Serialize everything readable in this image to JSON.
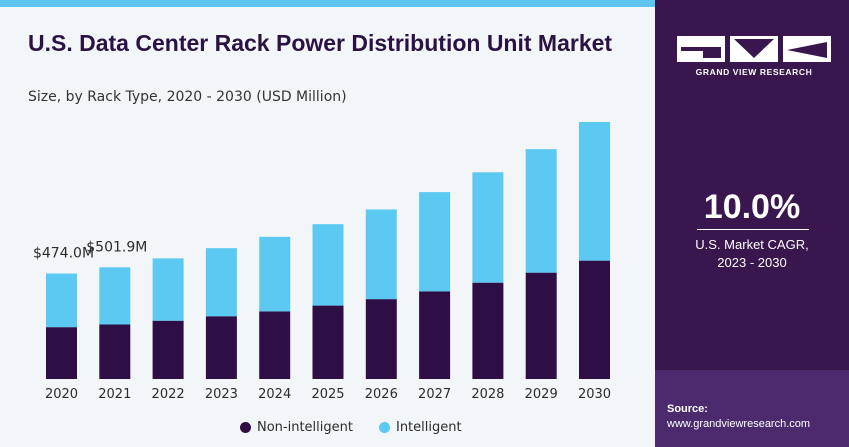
{
  "title": "U.S. Data Center Rack Power Distribution Unit Market",
  "subtitle": "Size, by Rack Type, 2020 - 2030 (USD Million)",
  "annotations": {
    "a2020": "$474.0M",
    "a2021": "$501.9M"
  },
  "legend": {
    "non_intelligent": "Non-intelligent",
    "intelligent": "Intelligent"
  },
  "sidebar": {
    "logo_text": "GRAND VIEW RESEARCH",
    "cagr_value": "10.0%",
    "cagr_label_line1": "U.S. Market CAGR,",
    "cagr_label_line2": "2023 - 2030",
    "source_title": "Source:",
    "source_url": "www.grandviewresearch.com"
  },
  "colors": {
    "non_intelligent": "#2d0f45",
    "intelligent": "#5cc9f2",
    "sidebar": "#3a164e",
    "accent": "#5ec6ee"
  },
  "chart_data": {
    "type": "bar",
    "stacked": true,
    "categories": [
      "2020",
      "2021",
      "2022",
      "2023",
      "2024",
      "2025",
      "2026",
      "2027",
      "2028",
      "2029",
      "2030"
    ],
    "series": [
      {
        "name": "Non-intelligent",
        "values": [
          233,
          245,
          262,
          282,
          304,
          330,
          359,
          394,
          433,
          478,
          532
        ]
      },
      {
        "name": "Intelligent",
        "values": [
          241,
          257,
          280,
          306,
          335,
          366,
          403,
          446,
          496,
          555,
          623
        ]
      }
    ],
    "totals": [
      474.0,
      501.9,
      542,
      588,
      639,
      696,
      762,
      840,
      929,
      1033,
      1155
    ],
    "ylim": [
      0,
      1200
    ],
    "grid": false,
    "legend_position": "bottom",
    "xlabel": "",
    "ylabel": ""
  }
}
